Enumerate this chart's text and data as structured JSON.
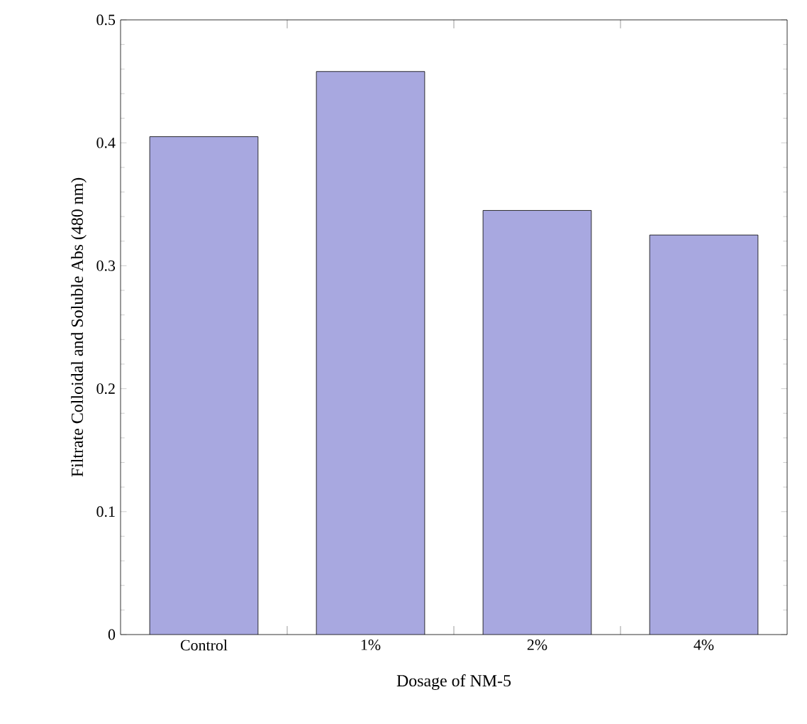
{
  "chart_data": {
    "type": "bar",
    "xlabel": "Dosage of NM-5",
    "ylabel": "Filtrate Colloidal and Soluble Abs (480 nm)",
    "categories": [
      "Control",
      "1%",
      "2%",
      "4%"
    ],
    "values": [
      0.405,
      0.458,
      0.345,
      0.325
    ],
    "color": "#a8a8e0",
    "ylim": [
      0,
      0.5
    ],
    "yticks": [
      0,
      0.1,
      0.2,
      0.3,
      0.4,
      0.5
    ],
    "grid": false
  }
}
